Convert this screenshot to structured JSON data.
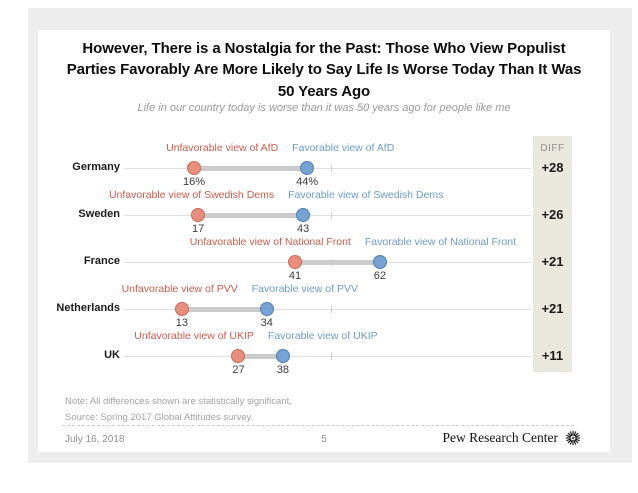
{
  "slide": {
    "title": "However, There is a Nostalgia for the Past: Those Who View Populist Parties Favorably Are More Likely to Say Life Is Worse Today Than It Was 50 Years Ago",
    "subtitle": "Life in our country today is worse than it was 50 years ago for people like me",
    "note": "Note: All differences shown are statistically significant.",
    "source": "Source: Spring 2017 Global Attitudes survey.",
    "footer": {
      "date": "July 16, 2018",
      "page_number": "5",
      "brand": "Pew Research Center"
    }
  },
  "chart_data": {
    "type": "scatter",
    "subtype": "dumbbell-dot-plot",
    "diff_header": "DIFF",
    "axis": {
      "min": 0,
      "max": 100,
      "midpoint_tick": 50,
      "grid": false
    },
    "legend_position": "above-each-dot",
    "colors": {
      "unfavorable_dot": "#e78e7e",
      "favorable_dot": "#76a3d3",
      "unfavorable_text": "#cb5b4c",
      "favorable_text": "#6d9bc9",
      "diff_band": "#eae8dc",
      "connector": "#cbcbcb"
    },
    "rows": [
      {
        "country": "Germany",
        "unfavorable_label": "Unfavorable view of AfD",
        "favorable_label": "Favorable view of AfD",
        "unfavorable_value": 16,
        "favorable_value": 44,
        "unfavorable_display": "16%",
        "favorable_display": "44%",
        "diff": "+28"
      },
      {
        "country": "Sweden",
        "unfavorable_label": "Unfavorable view of Swedish Dems",
        "favorable_label": "Favorable view of Swedish Dems",
        "unfavorable_value": 17,
        "favorable_value": 43,
        "unfavorable_display": "17",
        "favorable_display": "43",
        "diff": "+26"
      },
      {
        "country": "France",
        "unfavorable_label": "Unfavorable view of National Front",
        "favorable_label": "Favorable view of National Front",
        "unfavorable_value": 41,
        "favorable_value": 62,
        "unfavorable_display": "41",
        "favorable_display": "62",
        "diff": "+21"
      },
      {
        "country": "Netherlands",
        "unfavorable_label": "Unfavorable view of PVV",
        "favorable_label": "Favorable view of PVV",
        "unfavorable_value": 13,
        "favorable_value": 34,
        "unfavorable_display": "13",
        "favorable_display": "34",
        "diff": "+21"
      },
      {
        "country": "UK",
        "unfavorable_label": "Unfavorable view of UKIP",
        "favorable_label": "Favorable view of UKIP",
        "unfavorable_value": 27,
        "favorable_value": 38,
        "unfavorable_display": "27",
        "favorable_display": "38",
        "diff": "+11"
      }
    ]
  }
}
